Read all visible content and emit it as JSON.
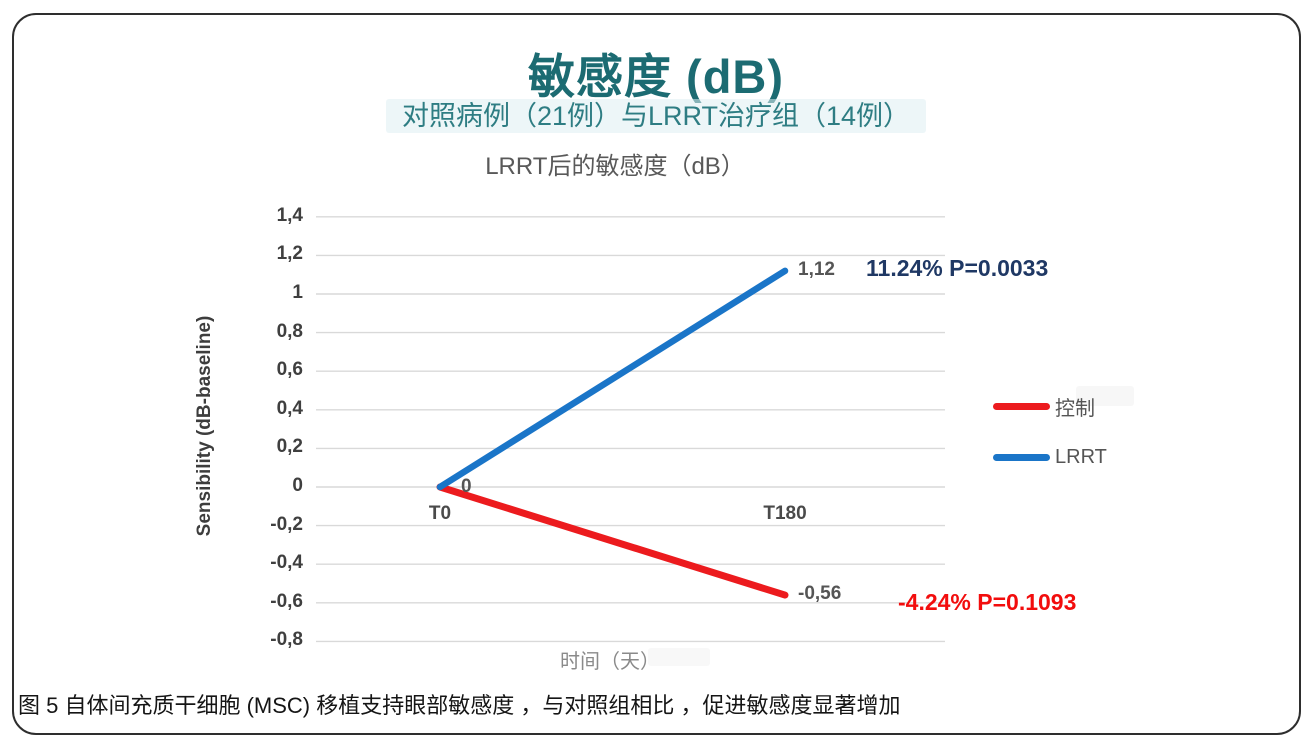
{
  "header": {
    "title": "敏感度 (dB)",
    "title_color": "#1c6b72",
    "subtitle": "对照病例（21例）与LRRT治疗组（14例）"
  },
  "caption": "图 5 自体间充质干细胞 (MSC) 移植支持眼部敏感度 ，与对照组相比 ，促进敏感度显著增加",
  "chart_data": {
    "type": "line",
    "title": "LRRT后的敏感度（dB）",
    "xlabel": "时间（天）",
    "ylabel": "Sensibility (dB-baseline)",
    "categories": [
      "T0",
      "T180"
    ],
    "series": [
      {
        "name": "控制",
        "color": "#ec1b1e",
        "values": [
          0,
          -0.56
        ],
        "point_labels": [
          "",
          "-0,56"
        ],
        "annotation": "-4.24% P=0.1093",
        "annotation_color": "#f20d0d"
      },
      {
        "name": "LRRT",
        "color": "#1a75c8",
        "values": [
          0,
          1.12
        ],
        "point_labels": [
          "0",
          "1,12"
        ],
        "annotation": "11.24% P=0.0033",
        "annotation_color": "#1f3864"
      }
    ],
    "yticks": [
      "1,4",
      "1,2",
      "1",
      "0,8",
      "0,6",
      "0,4",
      "0,2",
      "0",
      "-0,2",
      "-0,4",
      "-0,6",
      "-0,8"
    ],
    "ylim": [
      -0.8,
      1.4
    ],
    "grid": true,
    "legend_position": "right"
  }
}
